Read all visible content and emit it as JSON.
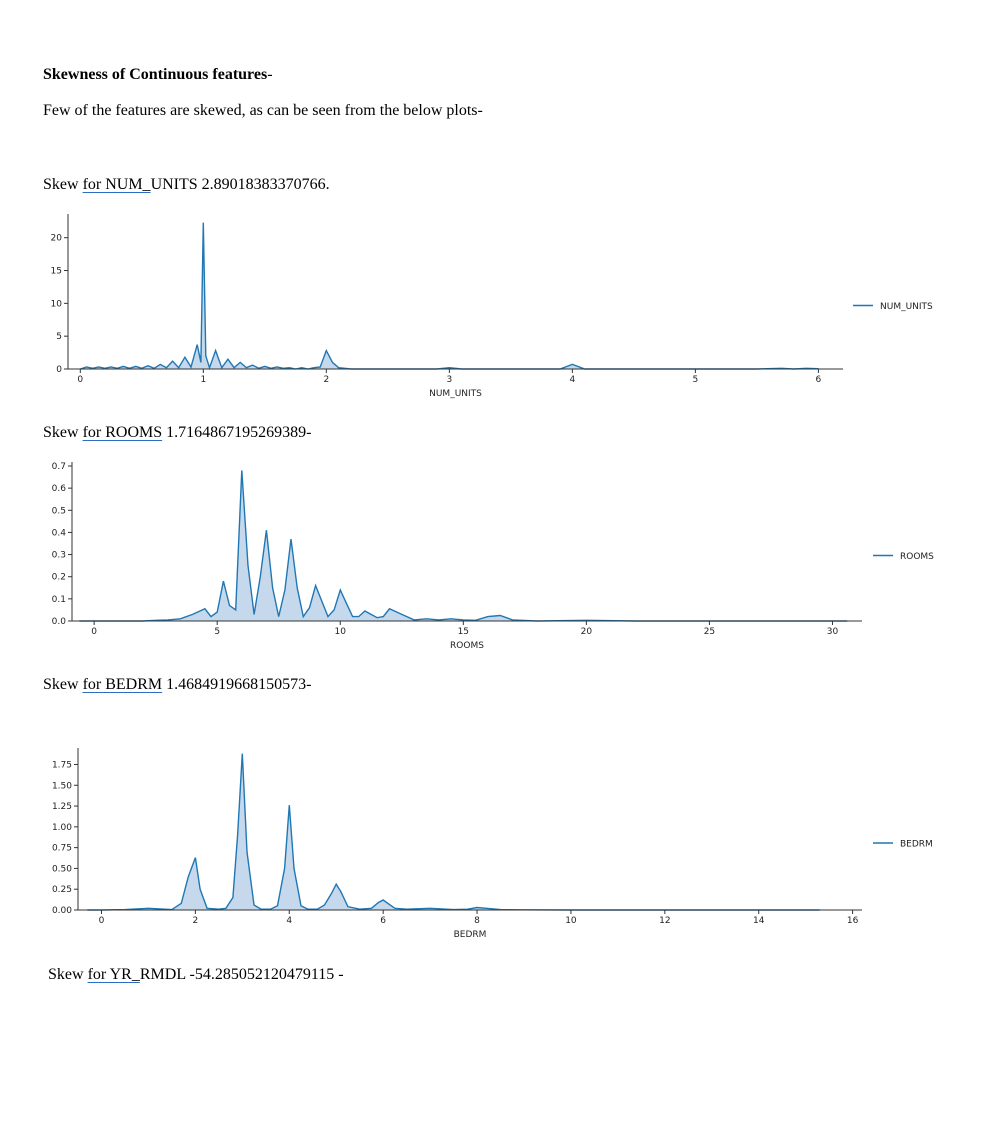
{
  "doc": {
    "heading": "Skewness of Continuous features",
    "heading_tail": "-",
    "intro": "Few of the features are skewed, as can be seen from the below plots-"
  },
  "sections": [
    {
      "prefix": "Skew ",
      "link": "for  NUM_",
      "suffix": "UNITS 2.89018383370766."
    },
    {
      "prefix": "Skew ",
      "link": "for  ROOMS",
      "suffix": " 1.7164867195269389-"
    },
    {
      "prefix": "Skew ",
      "link": "for  BEDRM",
      "suffix": " 1.4684919668150573-"
    },
    {
      "prefix": "Skew ",
      "link": "for  YR_",
      "suffix": "RMDL -54.285052120479115 -"
    }
  ],
  "colors": {
    "line": "#1f77b4",
    "fill": "#c6d9ec",
    "axis": "#333333"
  },
  "chart_data": [
    {
      "type": "area",
      "xlabel": "NUM_UNITS",
      "legend": "NUM_UNITS",
      "legend_position": "right",
      "grid": false,
      "xlim": [
        -0.1,
        6.2
      ],
      "ylim": [
        0,
        23
      ],
      "xticks": [
        0,
        1,
        2,
        3,
        4,
        5,
        6
      ],
      "yticks": [
        0,
        5,
        10,
        15,
        20
      ],
      "ytick_labels": [
        "0",
        "5",
        "10",
        "15",
        "20"
      ],
      "series": [
        {
          "x": [
            0,
            0.05,
            0.1,
            0.15,
            0.2,
            0.25,
            0.3,
            0.35,
            0.4,
            0.45,
            0.5,
            0.55,
            0.6,
            0.65,
            0.7,
            0.75,
            0.8,
            0.85,
            0.9,
            0.95,
            0.98,
            1.0,
            1.02,
            1.05,
            1.1,
            1.15,
            1.2,
            1.25,
            1.3,
            1.35,
            1.4,
            1.45,
            1.5,
            1.55,
            1.6,
            1.65,
            1.7,
            1.75,
            1.8,
            1.85,
            1.9,
            1.95,
            2.0,
            2.05,
            2.1,
            2.2,
            2.5,
            2.9,
            3.0,
            3.1,
            3.5,
            3.9,
            4.0,
            4.1,
            4.5,
            5.0,
            5.5,
            5.7,
            5.8,
            5.9,
            6.0
          ],
          "y": [
            0,
            0.3,
            0.1,
            0.3,
            0.1,
            0.3,
            0.1,
            0.4,
            0.1,
            0.4,
            0.1,
            0.5,
            0.1,
            0.7,
            0.2,
            1.2,
            0.2,
            1.8,
            0.3,
            3.7,
            1.0,
            22.3,
            2.0,
            0.2,
            2.8,
            0.2,
            1.5,
            0.2,
            1.0,
            0.2,
            0.6,
            0.1,
            0.4,
            0.1,
            0.3,
            0.1,
            0.2,
            0,
            0.2,
            0,
            0.2,
            0.3,
            2.8,
            1.0,
            0.2,
            0,
            0,
            0,
            0.2,
            0,
            0,
            0,
            0.7,
            0,
            0,
            0,
            0,
            0.1,
            0,
            0.1,
            0.05
          ]
        }
      ]
    },
    {
      "type": "area",
      "xlabel": "ROOMS",
      "legend": "ROOMS",
      "legend_position": "right",
      "grid": false,
      "xlim": [
        -0.9,
        31.2
      ],
      "ylim": [
        0,
        0.7
      ],
      "xticks": [
        0,
        5,
        10,
        15,
        20,
        25,
        30
      ],
      "yticks": [
        0,
        0.1,
        0.2,
        0.3,
        0.4,
        0.5,
        0.6,
        0.7
      ],
      "ytick_labels": [
        "0.0",
        "0.1",
        "0.2",
        "0.3",
        "0.4",
        "0.5",
        "0.6",
        "0.7"
      ],
      "series": [
        {
          "x": [
            -0.6,
            0,
            1,
            2,
            2.5,
            3,
            3.5,
            4,
            4.5,
            4.75,
            5,
            5.25,
            5.5,
            5.75,
            6,
            6.25,
            6.5,
            6.75,
            7,
            7.25,
            7.5,
            7.75,
            8,
            8.25,
            8.5,
            8.75,
            9,
            9.25,
            9.5,
            9.75,
            10,
            10.25,
            10.5,
            10.75,
            11,
            11.25,
            11.5,
            11.75,
            12,
            12.5,
            13,
            13.5,
            14,
            14.5,
            15,
            15.5,
            16,
            16.5,
            17,
            18,
            20,
            22,
            25,
            28,
            30,
            30.6
          ],
          "y": [
            0,
            0,
            0,
            0,
            0.003,
            0.005,
            0.01,
            0.03,
            0.055,
            0.02,
            0.04,
            0.18,
            0.07,
            0.05,
            0.68,
            0.25,
            0.03,
            0.2,
            0.41,
            0.15,
            0.02,
            0.14,
            0.37,
            0.15,
            0.02,
            0.06,
            0.16,
            0.09,
            0.02,
            0.05,
            0.14,
            0.08,
            0.02,
            0.02,
            0.045,
            0.03,
            0.015,
            0.02,
            0.055,
            0.03,
            0.005,
            0.01,
            0.005,
            0.01,
            0.005,
            0.003,
            0.02,
            0.025,
            0.005,
            0,
            0.003,
            0,
            0,
            0,
            0,
            0
          ]
        }
      ]
    },
    {
      "type": "area",
      "xlabel": "BEDRM",
      "legend": "BEDRM",
      "legend_position": "right",
      "grid": false,
      "xlim": [
        -0.5,
        16.2
      ],
      "ylim": [
        0,
        1.9
      ],
      "xticks": [
        0,
        2,
        4,
        6,
        8,
        10,
        12,
        14,
        16
      ],
      "yticks": [
        0,
        0.25,
        0.5,
        0.75,
        1.0,
        1.25,
        1.5,
        1.75
      ],
      "ytick_labels": [
        "0.00",
        "0.25",
        "0.50",
        "0.75",
        "1.00",
        "1.25",
        "1.50",
        "1.75"
      ],
      "series": [
        {
          "x": [
            -0.3,
            0,
            0.5,
            1,
            1.5,
            1.7,
            1.85,
            2,
            2.1,
            2.25,
            2.5,
            2.65,
            2.8,
            2.9,
            3,
            3.1,
            3.25,
            3.4,
            3.6,
            3.75,
            3.9,
            4,
            4.1,
            4.25,
            4.4,
            4.6,
            4.75,
            4.9,
            5,
            5.1,
            5.25,
            5.5,
            5.75,
            5.9,
            6,
            6.1,
            6.25,
            6.5,
            7,
            7.5,
            7.8,
            8,
            8.2,
            8.5,
            9,
            10,
            12,
            14,
            15,
            15.3
          ],
          "y": [
            0,
            0,
            0.005,
            0.02,
            0.005,
            0.08,
            0.4,
            0.63,
            0.25,
            0.02,
            0.01,
            0.02,
            0.15,
            0.9,
            1.88,
            0.7,
            0.06,
            0.01,
            0.01,
            0.05,
            0.5,
            1.26,
            0.5,
            0.05,
            0.01,
            0.01,
            0.06,
            0.2,
            0.31,
            0.22,
            0.04,
            0.01,
            0.02,
            0.09,
            0.12,
            0.08,
            0.02,
            0.01,
            0.02,
            0.005,
            0.01,
            0.03,
            0.02,
            0.005,
            0.002,
            0,
            0,
            0,
            0,
            0
          ]
        }
      ]
    }
  ]
}
